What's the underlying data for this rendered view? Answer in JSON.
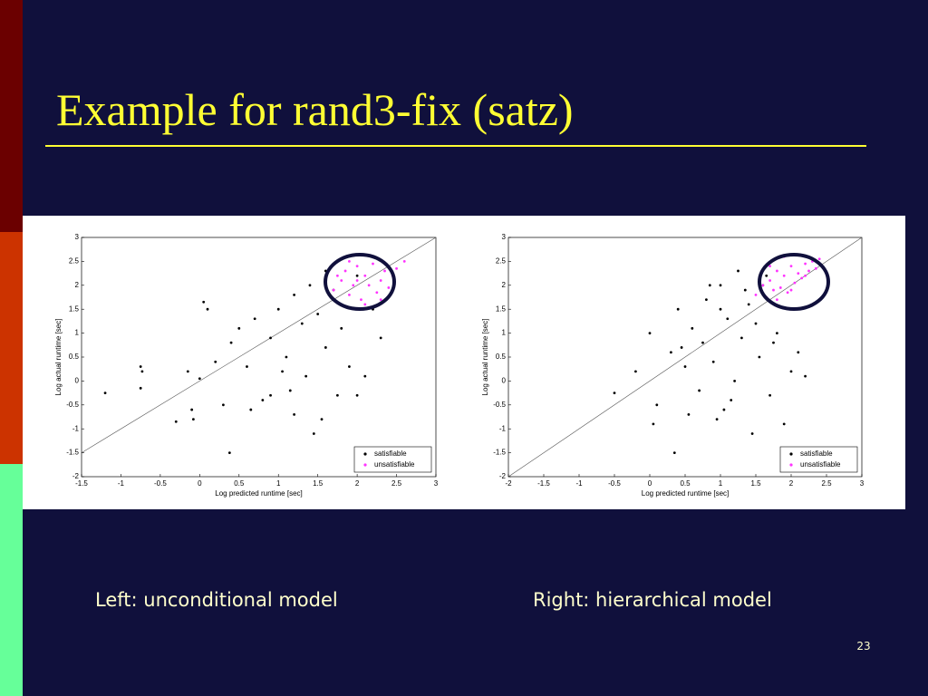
{
  "slide": {
    "title": "Example for rand3-fix (satz)",
    "captions": [
      "Left: unconditional model",
      "Right: hierarchical model"
    ],
    "page_number": "23"
  },
  "chart_data": [
    {
      "type": "scatter",
      "xlabel": "Log predicted runtime [sec]",
      "ylabel": "Log actual runtime [sec]",
      "xlim": [
        -1.5,
        3
      ],
      "ylim": [
        -2,
        3
      ],
      "xticks": [
        -1.5,
        -1,
        -0.5,
        0,
        0.5,
        1,
        1.5,
        2,
        2.5,
        3
      ],
      "yticks": [
        -2,
        -1.5,
        -1,
        -0.5,
        0,
        0.5,
        1,
        1.5,
        2,
        2.5,
        3
      ],
      "legend": "lower right",
      "series": [
        {
          "name": "satisfiable",
          "color": "#000000",
          "x": [
            -1.2,
            -0.75,
            -0.73,
            -0.75,
            -0.3,
            -0.15,
            -0.1,
            -0.08,
            0,
            0.05,
            0.1,
            0.2,
            0.3,
            0.38,
            0.4,
            0.5,
            0.6,
            0.7,
            0.8,
            0.9,
            1.0,
            1.1,
            1.15,
            1.2,
            1.3,
            1.35,
            1.4,
            1.5,
            1.55,
            1.6,
            1.7,
            1.75,
            1.8,
            1.9,
            2.0,
            2.0,
            2.1,
            2.2,
            2.3,
            1.2,
            0.9,
            1.6,
            1.45,
            0.65,
            1.05
          ],
          "y": [
            -0.25,
            0.3,
            0.2,
            -0.15,
            -0.85,
            0.2,
            -0.6,
            -0.8,
            0.05,
            1.65,
            1.5,
            0.4,
            -0.5,
            -1.5,
            0.8,
            1.1,
            0.3,
            1.3,
            -0.4,
            0.9,
            1.5,
            0.5,
            -0.2,
            1.8,
            1.2,
            0.1,
            2.0,
            1.4,
            -0.8,
            0.7,
            1.9,
            -0.3,
            1.1,
            0.3,
            2.2,
            -0.3,
            0.1,
            1.5,
            0.9,
            -0.7,
            -0.3,
            2.3,
            -1.1,
            -0.6,
            0.2
          ]
        },
        {
          "name": "unsatisfiable",
          "color": "#ff33ff",
          "x": [
            1.7,
            1.8,
            1.85,
            1.9,
            1.95,
            2.0,
            2.05,
            2.1,
            2.15,
            2.2,
            2.25,
            2.3,
            2.35,
            2.4,
            2.45,
            2.5,
            2.1,
            1.75,
            2.6,
            2.2,
            2.0,
            2.3,
            1.9
          ],
          "y": [
            1.9,
            2.1,
            2.3,
            1.8,
            2.0,
            2.4,
            1.7,
            2.2,
            2.0,
            2.45,
            1.85,
            2.1,
            2.3,
            1.95,
            2.2,
            2.35,
            1.6,
            2.2,
            2.5,
            2.6,
            2.1,
            1.7,
            2.5
          ]
        }
      ]
    },
    {
      "type": "scatter",
      "xlabel": "Log predicted runtime [sec]",
      "ylabel": "Log actual runtime [sec]",
      "xlim": [
        -2,
        3
      ],
      "ylim": [
        -2,
        3
      ],
      "xticks": [
        -2,
        -1.5,
        -1,
        -0.5,
        0,
        0.5,
        1,
        1.5,
        2,
        2.5,
        3
      ],
      "yticks": [
        -2,
        -1.5,
        -1,
        -0.5,
        0,
        0.5,
        1,
        1.5,
        2,
        2.5,
        3
      ],
      "legend": "lower right",
      "series": [
        {
          "name": "satisfiable",
          "color": "#000000",
          "x": [
            -0.5,
            -0.2,
            0.0,
            0.05,
            0.1,
            0.3,
            0.35,
            0.4,
            0.5,
            0.6,
            0.7,
            0.75,
            0.8,
            0.9,
            1.0,
            1.05,
            1.1,
            1.2,
            1.25,
            1.3,
            1.4,
            1.45,
            1.5,
            1.55,
            1.6,
            1.7,
            1.8,
            1.9,
            2.0,
            2.1,
            2.2,
            1.35,
            0.95,
            1.15,
            0.55,
            1.65,
            1.0,
            0.85,
            1.75,
            0.45
          ],
          "y": [
            -0.25,
            0.2,
            1.0,
            -0.9,
            -0.5,
            0.6,
            -1.5,
            1.5,
            0.3,
            1.1,
            -0.2,
            0.8,
            1.7,
            0.4,
            2.0,
            -0.6,
            1.3,
            0.0,
            2.3,
            0.9,
            1.6,
            -1.1,
            1.2,
            0.5,
            2.0,
            -0.3,
            1.0,
            -0.9,
            0.2,
            0.6,
            0.1,
            1.9,
            -0.8,
            -0.4,
            -0.7,
            2.2,
            1.5,
            2.0,
            0.8,
            0.7
          ]
        },
        {
          "name": "unsatisfiable",
          "color": "#ff33ff",
          "x": [
            1.5,
            1.6,
            1.65,
            1.7,
            1.75,
            1.8,
            1.85,
            1.9,
            1.95,
            2.0,
            2.05,
            2.1,
            2.15,
            2.2,
            2.25,
            2.3,
            2.35,
            2.4,
            1.7,
            1.9,
            2.0,
            2.2,
            1.8
          ],
          "y": [
            1.8,
            2.0,
            1.75,
            2.1,
            1.9,
            2.3,
            1.95,
            2.2,
            1.85,
            2.4,
            2.05,
            2.25,
            2.15,
            2.45,
            2.3,
            2.5,
            2.35,
            2.55,
            2.4,
            2.6,
            1.9,
            2.2,
            1.7
          ]
        }
      ]
    }
  ]
}
